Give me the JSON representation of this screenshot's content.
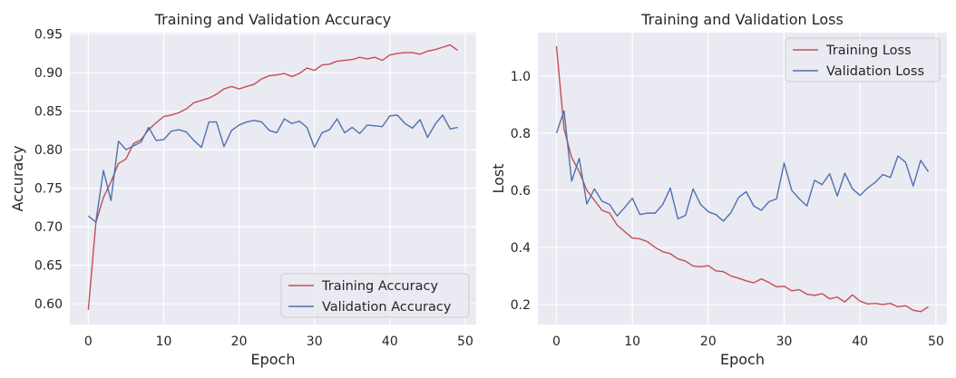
{
  "chart_data": [
    {
      "type": "line",
      "title": "Training and Validation Accuracy",
      "xlabel": "Epoch",
      "ylabel": "Accuracy",
      "xlim": [
        -2.45,
        51.45
      ],
      "ylim": [
        0.573,
        0.952
      ],
      "xticks": [
        0,
        10,
        20,
        30,
        40,
        50
      ],
      "yticks": [
        0.6,
        0.65,
        0.7,
        0.75,
        0.8,
        0.85,
        0.9,
        0.95
      ],
      "ytick_decimals": 2,
      "grid": true,
      "legend_position": "lower-right",
      "x": [
        0,
        1,
        2,
        3,
        4,
        5,
        6,
        7,
        8,
        9,
        10,
        11,
        12,
        13,
        14,
        15,
        16,
        17,
        18,
        19,
        20,
        21,
        22,
        23,
        24,
        25,
        26,
        27,
        28,
        29,
        30,
        31,
        32,
        33,
        34,
        35,
        36,
        37,
        38,
        39,
        40,
        41,
        42,
        43,
        44,
        45,
        46,
        47,
        48,
        49
      ],
      "series": [
        {
          "name": "Training Accuracy",
          "color": "#c44e52",
          "values": [
            0.592,
            0.705,
            0.738,
            0.758,
            0.782,
            0.788,
            0.808,
            0.813,
            0.826,
            0.835,
            0.843,
            0.845,
            0.848,
            0.853,
            0.861,
            0.864,
            0.867,
            0.872,
            0.879,
            0.882,
            0.879,
            0.882,
            0.885,
            0.892,
            0.896,
            0.897,
            0.899,
            0.895,
            0.899,
            0.906,
            0.903,
            0.91,
            0.911,
            0.915,
            0.916,
            0.917,
            0.92,
            0.918,
            0.92,
            0.916,
            0.923,
            0.925,
            0.926,
            0.926,
            0.924,
            0.928,
            0.93,
            0.933,
            0.936,
            0.929
          ]
        },
        {
          "name": "Validation Accuracy",
          "color": "#4c72b0",
          "values": [
            0.714,
            0.706,
            0.773,
            0.734,
            0.811,
            0.8,
            0.805,
            0.81,
            0.829,
            0.812,
            0.813,
            0.824,
            0.826,
            0.823,
            0.812,
            0.803,
            0.836,
            0.836,
            0.804,
            0.825,
            0.832,
            0.836,
            0.838,
            0.836,
            0.825,
            0.822,
            0.84,
            0.834,
            0.837,
            0.829,
            0.803,
            0.822,
            0.826,
            0.84,
            0.822,
            0.829,
            0.821,
            0.832,
            0.831,
            0.83,
            0.844,
            0.845,
            0.834,
            0.828,
            0.839,
            0.816,
            0.833,
            0.845,
            0.827,
            0.829
          ]
        }
      ]
    },
    {
      "type": "line",
      "title": "Training and Validation Loss",
      "xlabel": "Epoch",
      "ylabel": "Lost",
      "xlim": [
        -2.45,
        51.45
      ],
      "ylim": [
        0.13,
        1.152
      ],
      "xticks": [
        0,
        10,
        20,
        30,
        40,
        50
      ],
      "yticks": [
        0.2,
        0.4,
        0.6,
        0.8,
        1.0
      ],
      "ytick_decimals": 1,
      "grid": true,
      "legend_position": "upper-right",
      "x": [
        0,
        1,
        2,
        3,
        4,
        5,
        6,
        7,
        8,
        9,
        10,
        11,
        12,
        13,
        14,
        15,
        16,
        17,
        18,
        19,
        20,
        21,
        22,
        23,
        24,
        25,
        26,
        27,
        28,
        29,
        30,
        31,
        32,
        33,
        34,
        35,
        36,
        37,
        38,
        39,
        40,
        41,
        42,
        43,
        44,
        45,
        46,
        47,
        48,
        49
      ],
      "series": [
        {
          "name": "Training Loss",
          "color": "#c44e52",
          "values": [
            1.105,
            0.815,
            0.715,
            0.665,
            0.6,
            0.565,
            0.53,
            0.52,
            0.478,
            0.455,
            0.433,
            0.43,
            0.42,
            0.4,
            0.385,
            0.378,
            0.36,
            0.352,
            0.335,
            0.332,
            0.336,
            0.318,
            0.315,
            0.3,
            0.292,
            0.283,
            0.276,
            0.29,
            0.277,
            0.262,
            0.264,
            0.248,
            0.252,
            0.236,
            0.232,
            0.238,
            0.22,
            0.226,
            0.209,
            0.234,
            0.212,
            0.202,
            0.204,
            0.2,
            0.204,
            0.192,
            0.196,
            0.18,
            0.175,
            0.192
          ]
        },
        {
          "name": "Validation Loss",
          "color": "#4c72b0",
          "values": [
            0.8,
            0.878,
            0.632,
            0.712,
            0.552,
            0.605,
            0.562,
            0.55,
            0.51,
            0.54,
            0.572,
            0.515,
            0.52,
            0.52,
            0.55,
            0.608,
            0.5,
            0.512,
            0.605,
            0.55,
            0.525,
            0.515,
            0.492,
            0.522,
            0.575,
            0.595,
            0.545,
            0.53,
            0.56,
            0.57,
            0.695,
            0.6,
            0.57,
            0.545,
            0.635,
            0.62,
            0.658,
            0.58,
            0.66,
            0.605,
            0.582,
            0.608,
            0.628,
            0.655,
            0.645,
            0.72,
            0.698,
            0.615,
            0.705,
            0.665
          ]
        }
      ]
    }
  ]
}
